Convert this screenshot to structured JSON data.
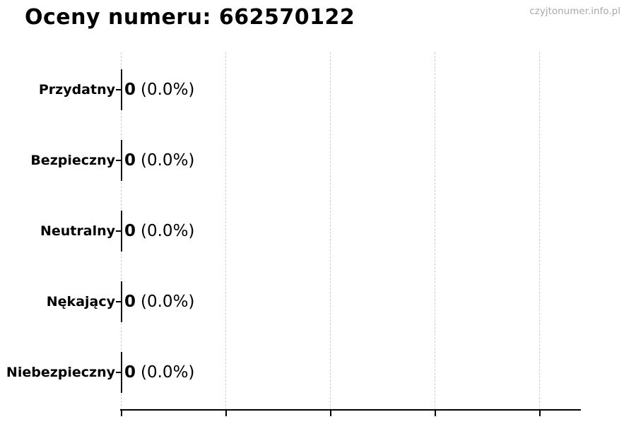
{
  "header": {
    "title": "Oceny numeru: 662570122",
    "watermark": "czyjtonumer.info.pl"
  },
  "chart_data": {
    "type": "bar",
    "orientation": "horizontal",
    "title": "Oceny numeru: 662570122",
    "xlabel": "",
    "ylabel": "",
    "categories": [
      "Przydatny",
      "Bezpieczny",
      "Neutralny",
      "Nękający",
      "Niebezpieczny"
    ],
    "values": [
      0,
      0,
      0,
      0,
      0
    ],
    "value_labels": [
      {
        "count": "0",
        "percent": "(0.0%)"
      },
      {
        "count": "0",
        "percent": "(0.0%)"
      },
      {
        "count": "0",
        "percent": "(0.0%)"
      },
      {
        "count": "0",
        "percent": "(0.0%)"
      },
      {
        "count": "0",
        "percent": "(0.0%)"
      }
    ],
    "x_tick_labels": [
      "",
      "",
      "",
      "",
      ""
    ],
    "x_gridline_count": 5,
    "grid": "vertical-dashed",
    "legend": "none",
    "colors": {
      "bar_edge": "#111111",
      "gridline": "#cccccc",
      "axis": "#000000",
      "text": "#000000",
      "watermark": "#a9a9a9"
    }
  }
}
